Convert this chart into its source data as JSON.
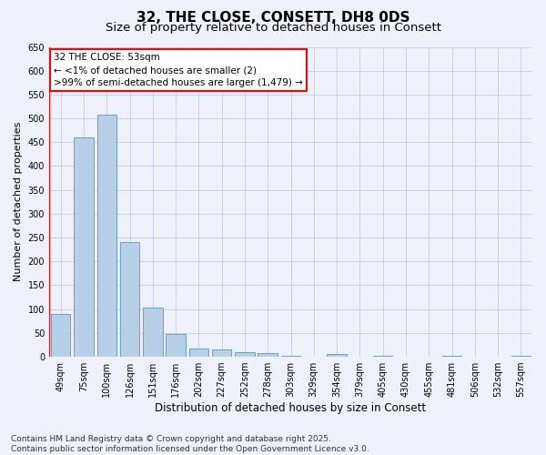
{
  "title": "32, THE CLOSE, CONSETT, DH8 0DS",
  "subtitle": "Size of property relative to detached houses in Consett",
  "xlabel": "Distribution of detached houses by size in Consett",
  "ylabel": "Number of detached properties",
  "categories": [
    "49sqm",
    "75sqm",
    "100sqm",
    "126sqm",
    "151sqm",
    "176sqm",
    "202sqm",
    "227sqm",
    "252sqm",
    "278sqm",
    "303sqm",
    "329sqm",
    "354sqm",
    "379sqm",
    "405sqm",
    "430sqm",
    "455sqm",
    "481sqm",
    "506sqm",
    "532sqm",
    "557sqm"
  ],
  "values": [
    90,
    460,
    507,
    240,
    103,
    48,
    17,
    15,
    10,
    8,
    3,
    0,
    5,
    0,
    3,
    0,
    0,
    3,
    0,
    0,
    3
  ],
  "bar_color": "#b8cfe8",
  "bar_edge_color": "#6aa0cc",
  "annotation_text": "32 THE CLOSE: 53sqm\n← <1% of detached houses are smaller (2)\n>99% of semi-detached houses are larger (1,479) →",
  "annotation_box_color": "white",
  "annotation_edge_color": "red",
  "marker_line_color": "red",
  "ylim": [
    0,
    650
  ],
  "yticks": [
    0,
    50,
    100,
    150,
    200,
    250,
    300,
    350,
    400,
    450,
    500,
    550,
    600,
    650
  ],
  "background_color": "#eef0fa",
  "grid_color": "#c5cce8",
  "footnote": "Contains HM Land Registry data © Crown copyright and database right 2025.\nContains public sector information licensed under the Open Government Licence v3.0.",
  "title_fontsize": 11,
  "subtitle_fontsize": 9.5,
  "xlabel_fontsize": 8.5,
  "ylabel_fontsize": 8,
  "tick_fontsize": 7,
  "annotation_fontsize": 7.5,
  "footnote_fontsize": 6.5
}
